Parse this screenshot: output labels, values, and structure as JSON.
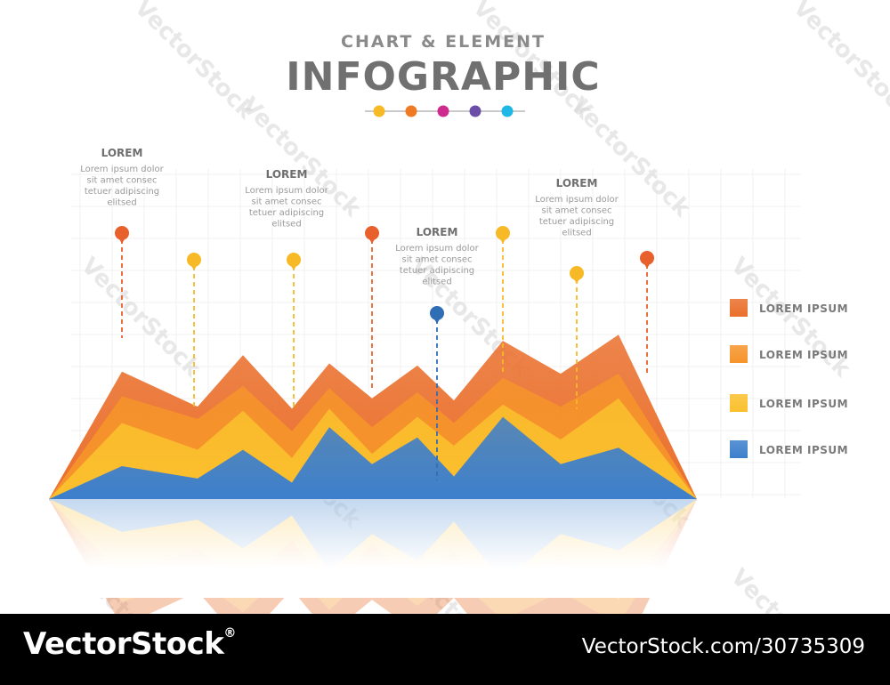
{
  "title": {
    "subtitle": "CHART & ELEMENT",
    "main": "INFOGRAPHIC",
    "dots": [
      "#f7b925",
      "#ef7a21",
      "#cf2b8e",
      "#6a4ea8",
      "#1fb7e5"
    ]
  },
  "annotations": [
    {
      "title": "LOREM",
      "lines": [
        "Lorem ipsum dolor",
        "sit amet consec",
        "tetuer adipiscing",
        "elitsed"
      ]
    },
    {
      "title": "LOREM",
      "lines": [
        "Lorem ipsum dolor",
        "sit amet consec",
        "tetuer adipiscing",
        "elitsed"
      ]
    },
    {
      "title": "LOREM",
      "lines": [
        "Lorem ipsum dolor",
        "sit amet consec",
        "tetuer adipiscing",
        "elitsed"
      ]
    },
    {
      "title": "LOREM",
      "lines": [
        "Lorem ipsum dolor",
        "sit amet consec",
        "tetuer adipiscing",
        "elitsed"
      ]
    }
  ],
  "chart_data": {
    "type": "area",
    "title": "",
    "xlabel": "",
    "ylabel": "",
    "grid": true,
    "legend_position": "right",
    "series": [
      {
        "name": "LOREM IPSUM",
        "color": "#ea6f2c",
        "values": [
          0,
          62,
          45,
          70,
          44,
          66,
          49,
          65,
          48,
          77,
          61,
          80,
          0
        ]
      },
      {
        "name": "LOREM IPSUM",
        "color": "#f6942b",
        "values": [
          0,
          50,
          39,
          55,
          33,
          54,
          35,
          52,
          37,
          59,
          45,
          61,
          0
        ]
      },
      {
        "name": "LOREM IPSUM",
        "color": "#fbc02d",
        "values": [
          0,
          37,
          24,
          43,
          20,
          44,
          22,
          40,
          26,
          46,
          29,
          49,
          0
        ]
      },
      {
        "name": "LOREM IPSUM",
        "color": "#3d7fcc",
        "values": [
          0,
          16,
          10,
          24,
          8,
          35,
          17,
          30,
          11,
          40,
          17,
          25,
          0
        ]
      }
    ],
    "markers": [
      {
        "color": "#e8602c"
      },
      {
        "color": "#f7b925"
      },
      {
        "color": "#f7b925"
      },
      {
        "color": "#e8602c"
      },
      {
        "color": "#2f6db5"
      },
      {
        "color": "#f7b925"
      },
      {
        "color": "#f7b925"
      },
      {
        "color": "#e8602c"
      }
    ]
  },
  "watermark": "VectorStock",
  "footer": {
    "brand": "VectorStock",
    "reg": "®",
    "url": "VectorStock.com/30735309"
  }
}
